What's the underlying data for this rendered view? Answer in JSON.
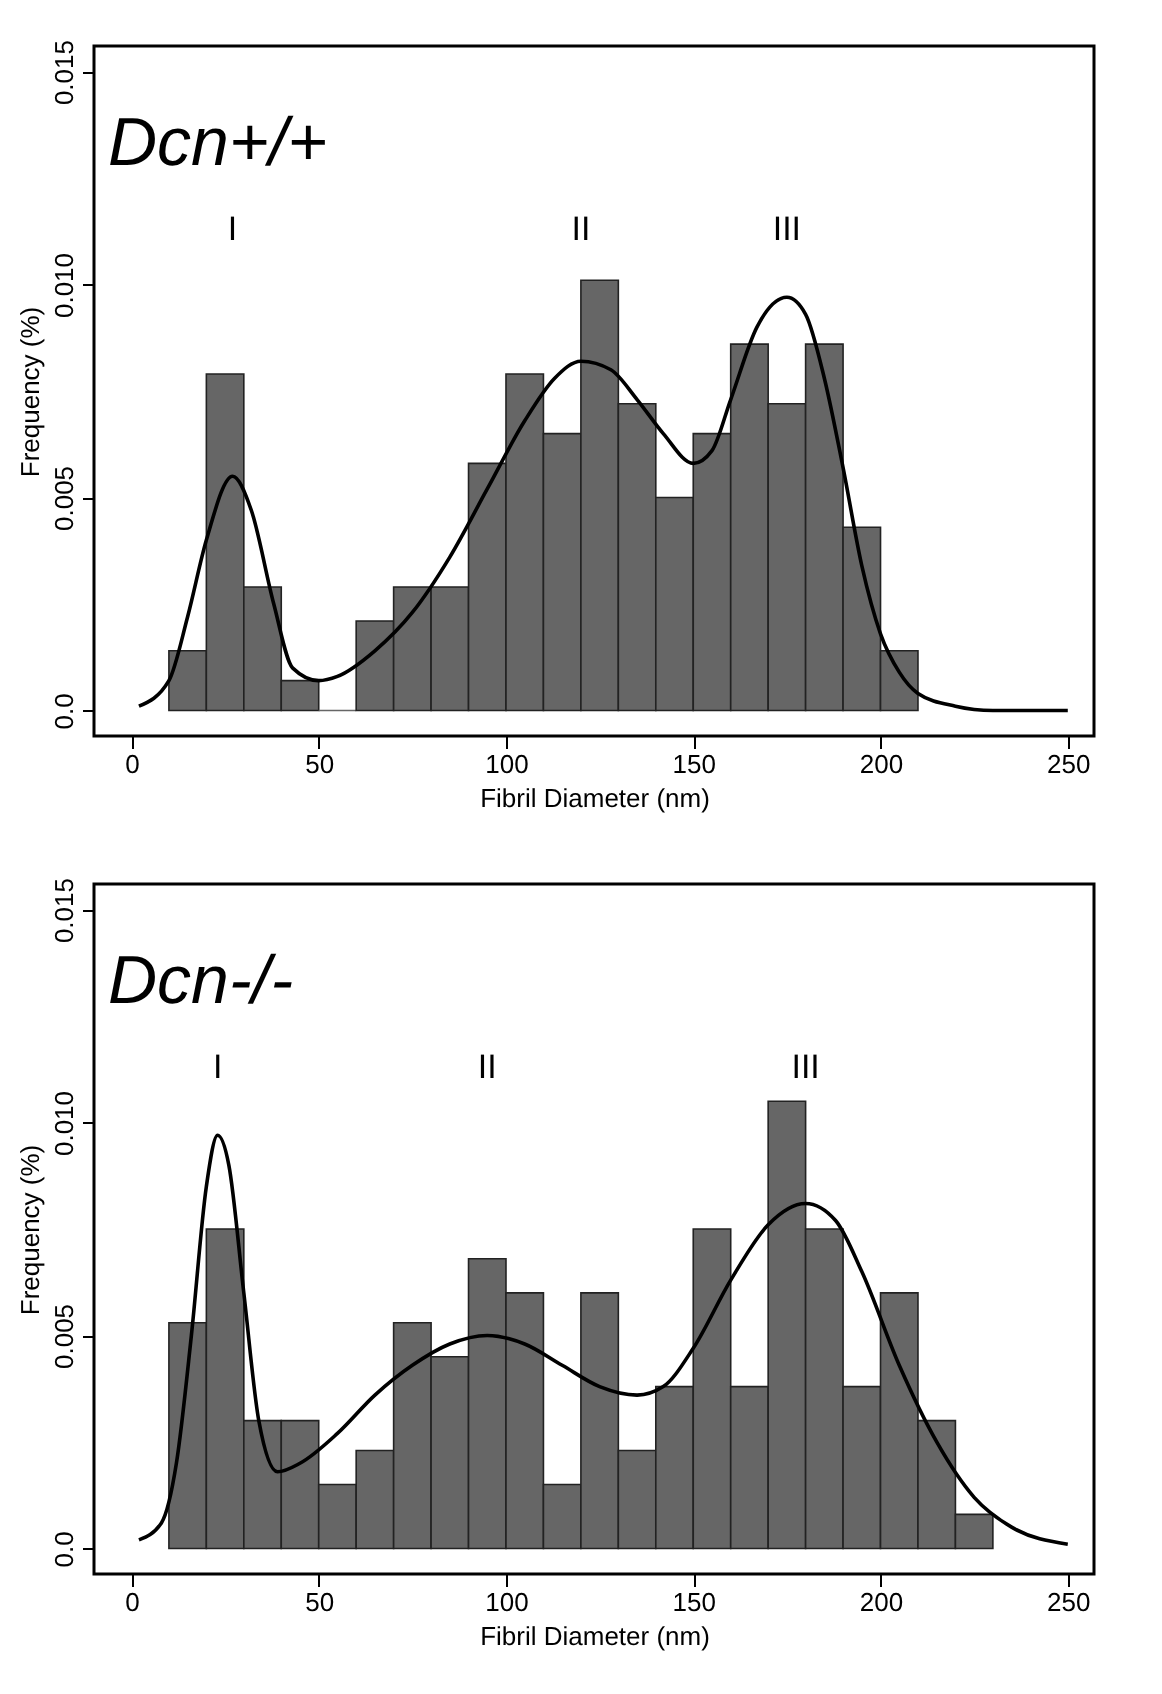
{
  "chart_data": [
    {
      "type": "histogram",
      "title": "Dcn+/+",
      "xlabel": "Fibril Diameter (nm)",
      "ylabel": "Frequency (%)",
      "bins": [
        10,
        20,
        30,
        40,
        50,
        60,
        70,
        80,
        90,
        100,
        110,
        120,
        130,
        140,
        150,
        160,
        170,
        180,
        190,
        200,
        210
      ],
      "values": [
        0.0014,
        0.0079,
        0.0029,
        0.0007,
        0,
        0.0021,
        0.0029,
        0.0029,
        0.0058,
        0.0079,
        0.0065,
        0.0101,
        0.0072,
        0.005,
        0.0065,
        0.0086,
        0.0072,
        0.0086,
        0.0043,
        0.0014
      ],
      "color": "#666666",
      "series": [
        {
          "type": "line",
          "color": "#000000",
          "x": [
            2,
            10,
            15,
            20,
            27,
            32,
            38,
            43,
            50,
            55,
            65,
            75,
            85,
            95,
            105,
            113,
            120,
            128,
            135,
            142,
            150,
            155,
            160,
            167,
            175,
            180,
            185,
            190,
            195,
            200,
            205,
            210,
            220,
            230,
            250
          ],
          "values": [
            0.0001,
            0.0007,
            0.0022,
            0.004,
            0.0055,
            0.0047,
            0.0025,
            0.001,
            0.0007,
            0.0008,
            0.0014,
            0.0023,
            0.0036,
            0.0052,
            0.0068,
            0.0078,
            0.0082,
            0.008,
            0.0073,
            0.0065,
            0.0058,
            0.0061,
            0.0073,
            0.009,
            0.0097,
            0.0093,
            0.0078,
            0.0057,
            0.0034,
            0.0018,
            0.0009,
            0.0004,
            0.0001,
            0,
            0
          ]
        }
      ],
      "annotations": [
        "I",
        "II",
        "III"
      ],
      "xlim": [
        -10,
        257
      ],
      "xticks": [
        0,
        50,
        100,
        150,
        200,
        250
      ],
      "ylim": [
        -0.0006,
        0.0156
      ],
      "yticks": [
        {
          "value": 0,
          "label": "0.0"
        },
        {
          "value": 0.005,
          "label": "0.005"
        },
        {
          "value": 0.01,
          "label": "0.010"
        },
        {
          "value": 0.015,
          "label": "0.015"
        }
      ],
      "grid": false
    },
    {
      "type": "histogram",
      "title": "Dcn-/-",
      "xlabel": "Fibril Diameter (nm)",
      "ylabel": "Frequency (%)",
      "bins": [
        10,
        20,
        30,
        40,
        50,
        60,
        70,
        80,
        90,
        100,
        110,
        120,
        130,
        140,
        150,
        160,
        170,
        180,
        190,
        200,
        210,
        220,
        230
      ],
      "values": [
        0.0053,
        0.0075,
        0.003,
        0.003,
        0.0015,
        0.0023,
        0.0053,
        0.0045,
        0.0068,
        0.006,
        0.0015,
        0.006,
        0.0023,
        0.0038,
        0.0075,
        0.0038,
        0.0105,
        0.0075,
        0.0038,
        0.006,
        0.003,
        0.0008
      ],
      "color": "#666666",
      "series": [
        {
          "type": "line",
          "color": "#000000",
          "x": [
            2,
            8,
            12,
            16,
            20,
            23,
            26,
            30,
            34,
            39,
            45,
            55,
            65,
            75,
            85,
            95,
            105,
            115,
            125,
            135,
            142,
            150,
            160,
            170,
            180,
            188,
            195,
            205,
            215,
            225,
            235,
            250
          ],
          "values": [
            0.0002,
            0.0006,
            0.002,
            0.005,
            0.0085,
            0.0097,
            0.009,
            0.006,
            0.003,
            0.0018,
            0.002,
            0.0027,
            0.0036,
            0.0043,
            0.0048,
            0.005,
            0.0048,
            0.0043,
            0.0038,
            0.0036,
            0.0038,
            0.0047,
            0.0063,
            0.0076,
            0.0081,
            0.0077,
            0.0065,
            0.0043,
            0.0025,
            0.0012,
            0.0005,
            0.0001
          ]
        }
      ],
      "annotations": [
        "I",
        "II",
        "III"
      ],
      "xlim": [
        -10,
        257
      ],
      "xticks": [
        0,
        50,
        100,
        150,
        200,
        250
      ],
      "ylim": [
        -0.0006,
        0.0156
      ],
      "yticks": [
        {
          "value": 0,
          "label": "0.0"
        },
        {
          "value": 0.005,
          "label": "0.005"
        },
        {
          "value": 0.01,
          "label": "0.010"
        },
        {
          "value": 0.015,
          "label": "0.015"
        }
      ],
      "grid": false
    }
  ]
}
